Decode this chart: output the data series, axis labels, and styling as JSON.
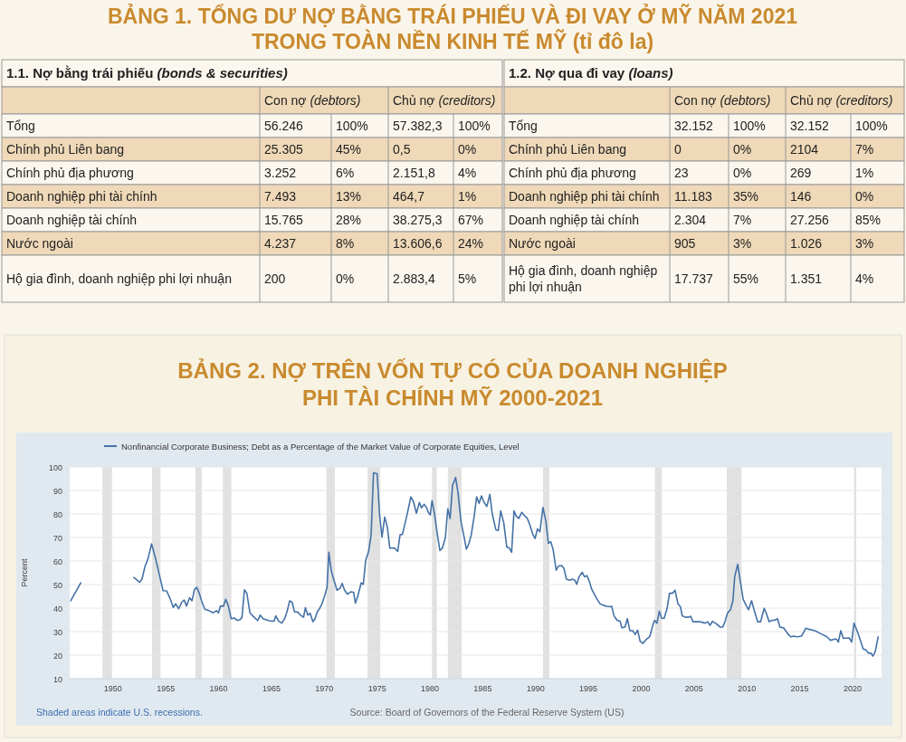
{
  "chart_data": [
    {
      "type": "other",
      "title": "BẢNG 1. TỔNG DƯ NỢ BẰNG TRÁI PHIẾU VÀ ĐI VAY Ở MỸ NĂM 2021\nTRONG TOÀN NỀN KINH TẾ MỸ (tỉ đô la)",
      "subtitle": "1.1. Nợ bằng trái phiếu (bonds & securities)",
      "categories": [
        "Con nợ (debtors)",
        "Chủ nợ (creditors)"
      ],
      "y_categories": [
        "Tổng",
        "Chính phủ Liên bang",
        "Chính phủ địa phương",
        "Doanh nghiệp phi tài chính",
        "Doanh nghiệp tài chính",
        "Nước ngoài",
        "Hộ gia đình, doanh nghiệp phi lợi nhuận"
      ],
      "cell_labels": [
        [
          "56.246",
          "100%",
          "57.382,3",
          "100%"
        ],
        [
          "25.305",
          "45%",
          "0,5",
          "0%"
        ],
        [
          "3.252",
          "6%",
          "2.151,8",
          "4%"
        ],
        [
          "7.493",
          "13%",
          "464,7",
          "1%"
        ],
        [
          "15.765",
          "28%",
          "38.275,3",
          "67%"
        ],
        [
          "4.237",
          "8%",
          "13.606,6",
          "24%"
        ],
        [
          "200",
          "0%",
          "2.883,4",
          "5%"
        ]
      ]
    },
    {
      "type": "other",
      "subtitle": "1.2. Nợ qua đi vay (loans)",
      "categories": [
        "Con nợ (debtors)",
        "Chủ nợ (creditors)"
      ],
      "y_categories": [
        "Tổng",
        "Chính phủ Liên bang",
        "Chính phủ địa phương",
        "Doanh nghiệp phi tài chính",
        "Doanh nghiệp tài chính",
        "Nước ngoài",
        "Hộ gia đình, doanh nghiệp phi lợi nhuận"
      ],
      "cell_labels": [
        [
          "32.152",
          "100%",
          "32.152",
          "100%"
        ],
        [
          "0",
          "0%",
          "2104",
          "7%"
        ],
        [
          "23",
          "0%",
          "269",
          "1%"
        ],
        [
          "11.183",
          "35%",
          "146",
          "0%"
        ],
        [
          "2.304",
          "7%",
          "27.256",
          "85%"
        ],
        [
          "905",
          "3%",
          "1.026",
          "3%"
        ],
        [
          "17.737",
          "55%",
          "1.351",
          "4%"
        ]
      ]
    },
    {
      "type": "line",
      "title": "BẢNG 2. NỢ TRÊN VỐN TỰ CÓ CỦA DOANH NGHIỆP\nPHI TÀI CHÍNH MỸ 2000-2021",
      "ylabel": "Percent",
      "legend": "top left",
      "grid": "y",
      "xlim": [
        1945.9,
        2022.75
      ],
      "xticks": [
        1950,
        1955,
        1960,
        1965,
        1970,
        1975,
        1980,
        1985,
        1990,
        1995,
        2000,
        2005,
        2010,
        2015,
        2020
      ],
      "ylim": [
        10,
        100
      ],
      "yticks": [
        10,
        20,
        30,
        40,
        50,
        60,
        70,
        80,
        90,
        100
      ],
      "annotations": [
        "Shaded areas indicate U.S. recessions.",
        "Source: Board of Governors of the Federal Reserve System (US)"
      ],
      "bands": [
        {
          "axis": "x",
          "from": 1949.0,
          "to": 1949.9,
          "color": "#e1e1e1"
        },
        {
          "axis": "x",
          "from": 1953.7,
          "to": 1954.5,
          "color": "#e1e1e1"
        },
        {
          "axis": "x",
          "from": 1957.8,
          "to": 1958.4,
          "color": "#e1e1e1"
        },
        {
          "axis": "x",
          "from": 1960.4,
          "to": 1961.2,
          "color": "#e1e1e1"
        },
        {
          "axis": "x",
          "from": 1970.2,
          "to": 1971.0,
          "color": "#e1e1e1"
        },
        {
          "axis": "x",
          "from": 1974.1,
          "to": 1975.3,
          "color": "#e1e1e1"
        },
        {
          "axis": "x",
          "from": 1980.2,
          "to": 1980.65,
          "color": "#e1e1e1"
        },
        {
          "axis": "x",
          "from": 1981.7,
          "to": 1983.0,
          "color": "#e1e1e1"
        },
        {
          "axis": "x",
          "from": 1990.7,
          "to": 1991.3,
          "color": "#e1e1e1"
        },
        {
          "axis": "x",
          "from": 2001.3,
          "to": 2001.95,
          "color": "#e1e1e1"
        },
        {
          "axis": "x",
          "from": 2008.1,
          "to": 2009.5,
          "color": "#e1e1e1"
        },
        {
          "axis": "x",
          "from": 2020.15,
          "to": 2020.35,
          "color": "#e1e1e1"
        }
      ],
      "x": [
        1946.0,
        1946.95,
        1949.5,
        1951.97,
        1952.51,
        1952.74,
        1953.03,
        1953.31,
        1953.65,
        1954.0,
        1954.4,
        1954.74,
        1955.08,
        1955.37,
        1955.71,
        1955.94,
        1956.22,
        1956.51,
        1956.74,
        1956.96,
        1957.25,
        1957.48,
        1957.71,
        1957.93,
        1958.16,
        1958.39,
        1958.68,
        1959.08,
        1959.5,
        1959.79,
        1959.99,
        1960.16,
        1960.45,
        1960.67,
        1960.9,
        1961.19,
        1961.47,
        1961.76,
        1962.04,
        1962.21,
        1962.44,
        1962.67,
        1962.96,
        1963.36,
        1963.7,
        1963.93,
        1964.21,
        1964.78,
        1965.24,
        1965.41,
        1965.7,
        1965.98,
        1966.27,
        1966.5,
        1966.72,
        1966.95,
        1967.18,
        1967.47,
        1967.75,
        1968.04,
        1968.21,
        1968.44,
        1968.66,
        1968.92,
        1969.12,
        1969.35,
        1969.49,
        1969.78,
        1970.06,
        1970.26,
        1970.43,
        1970.66,
        1970.91,
        1971.2,
        1971.49,
        1971.69,
        1971.92,
        1972.2,
        1972.49,
        1972.77,
        1972.95,
        1973.2,
        1973.49,
        1973.69,
        1973.92,
        1974.2,
        1974.43,
        1974.66,
        1975.0,
        1975.23,
        1975.46,
        1975.72,
        1975.97,
        1976.2,
        1976.63,
        1976.95,
        1977.17,
        1977.4,
        1977.8,
        1978.2,
        1978.43,
        1978.72,
        1979.0,
        1979.2,
        1979.46,
        1979.69,
        1979.85,
        1980.03,
        1980.2,
        1980.43,
        1980.71,
        1980.94,
        1981.17,
        1981.46,
        1981.69,
        1981.91,
        1982.14,
        1982.43,
        1982.66,
        1982.94,
        1983.22,
        1983.45,
        1983.68,
        1983.91,
        1984.2,
        1984.42,
        1984.65,
        1984.88,
        1985.1,
        1985.39,
        1985.67,
        1985.9,
        1986.24,
        1986.47,
        1986.7,
        1986.99,
        1987.27,
        1987.5,
        1987.73,
        1987.96,
        1988.18,
        1988.41,
        1988.7,
        1988.93,
        1989.22,
        1989.44,
        1989.73,
        1989.95,
        1990.18,
        1990.41,
        1990.7,
        1990.98,
        1991.21,
        1991.44,
        1991.67,
        1991.95,
        1992.18,
        1992.47,
        1992.69,
        1992.92,
        1993.21,
        1993.49,
        1993.72,
        1993.89,
        1994.12,
        1994.41,
        1994.63,
        1994.86,
        1995.09,
        1995.32,
        1995.83,
        1996.11,
        1996.4,
        1996.74,
        1997.03,
        1997.2,
        1997.43,
        1997.71,
        1998.0,
        1998.17,
        1998.46,
        1998.69,
        1998.92,
        1999.2,
        1999.43,
        1999.66,
        1999.89,
        2000.17,
        2000.46,
        2000.8,
        2001.03,
        2001.26,
        2001.49,
        2001.71,
        2001.94,
        2002.17,
        2002.45,
        2002.68,
        2002.97,
        2003.2,
        2003.48,
        2003.71,
        2003.88,
        2004.17,
        2004.45,
        2004.68,
        2004.91,
        2005.2,
        2005.54,
        2005.82,
        2006.05,
        2006.28,
        2006.51,
        2006.74,
        2007.14,
        2007.48,
        2007.71,
        2007.93,
        2008.16,
        2008.45,
        2008.68,
        2008.85,
        2009.13,
        2009.36,
        2009.65,
        2009.93,
        2010.16,
        2010.45,
        2010.68,
        2011.02,
        2011.3,
        2011.64,
        2011.87,
        2012.1,
        2012.39,
        2012.61,
        2012.9,
        2013.13,
        2013.47,
        2013.87,
        2014.15,
        2014.44,
        2014.73,
        2015.18,
        2015.58,
        2015.87,
        2016.44,
        2017.01,
        2017.58,
        2017.92,
        2018.32,
        2018.49,
        2018.66,
        2018.89,
        2019.12,
        2019.46,
        2019.69,
        2019.92,
        2020.14,
        2020.43,
        2020.72,
        2021.0,
        2021.29,
        2021.52,
        2021.75,
        2021.92,
        2022.15,
        2022.43
      ],
      "series": [
        {
          "name": "Nonfinancial Corporate Business; Debt as a Percentage of the Market Value of Corporate Equities, Level",
          "color": "#4572a7",
          "values": [
            43.1,
            50.7,
            null,
            53.0,
            51.0,
            52.3,
            57.7,
            60.9,
            67.3,
            61.6,
            53.9,
            47.4,
            47.3,
            44.4,
            40.3,
            41.8,
            39.7,
            42.5,
            43.4,
            40.9,
            44.4,
            43.1,
            47.9,
            48.8,
            46.3,
            43.1,
            39.5,
            38.9,
            38.0,
            38.9,
            38.0,
            40.8,
            40.8,
            43.7,
            41.2,
            35.5,
            35.8,
            34.8,
            35.1,
            36.1,
            47.8,
            46.3,
            38.0,
            36.1,
            34.7,
            37.0,
            35.5,
            34.6,
            34.4,
            36.7,
            34.4,
            33.6,
            35.7,
            38.9,
            43.1,
            42.5,
            38.4,
            38.3,
            37.0,
            36.1,
            40.2,
            37.0,
            37.8,
            34.2,
            35.5,
            38.6,
            39.3,
            41.8,
            45.6,
            48.8,
            63.7,
            55.8,
            52.0,
            47.6,
            48.4,
            50.5,
            47.6,
            45.9,
            46.9,
            46.7,
            42.1,
            45.6,
            50.7,
            50.1,
            60.3,
            64.1,
            70.9,
            97.5,
            97.1,
            80.0,
            70.1,
            78.7,
            74.3,
            65.5,
            65.6,
            64.1,
            71.1,
            71.4,
            79.0,
            87.3,
            85.4,
            80.3,
            84.9,
            82.6,
            84.1,
            82.6,
            80.7,
            79.6,
            85.7,
            80.0,
            71.1,
            64.5,
            65.4,
            69.8,
            82.2,
            78.1,
            92.1,
            95.5,
            88.9,
            76.8,
            70.5,
            65.0,
            67.3,
            71.1,
            79.4,
            87.3,
            84.5,
            87.7,
            85.1,
            83.2,
            88.3,
            80.0,
            73.3,
            73.0,
            81.3,
            76.2,
            66.0,
            65.6,
            63.7,
            81.3,
            79.0,
            78.1,
            80.7,
            79.4,
            78.1,
            75.6,
            71.4,
            69.6,
            73.7,
            72.4,
            82.8,
            76.8,
            67.5,
            68.2,
            64.7,
            56.1,
            57.9,
            58.1,
            56.8,
            52.3,
            51.8,
            52.3,
            51.8,
            50.1,
            53.3,
            55.2,
            53.3,
            53.8,
            51.4,
            47.9,
            43.7,
            41.8,
            41.2,
            40.8,
            40.6,
            40.8,
            36.7,
            34.8,
            34.4,
            31.6,
            31.9,
            35.5,
            30.4,
            30.4,
            28.8,
            30.6,
            25.9,
            25.0,
            26.6,
            27.8,
            31.6,
            34.8,
            33.6,
            38.6,
            35.7,
            35.7,
            39.9,
            46.3,
            46.3,
            47.6,
            41.8,
            40.6,
            36.7,
            36.1,
            36.1,
            36.5,
            34.2,
            34.2,
            34.2,
            33.9,
            33.6,
            34.2,
            32.7,
            34.4,
            33.2,
            31.9,
            31.9,
            34.2,
            37.8,
            39.3,
            43.1,
            53.3,
            58.6,
            52.0,
            43.7,
            41.2,
            39.3,
            43.1,
            39.3,
            34.2,
            34.2,
            39.9,
            37.4,
            34.2,
            34.8,
            34.8,
            35.5,
            31.9,
            31.6,
            29.1,
            27.8,
            28.1,
            27.8,
            28.1,
            31.4,
            31.0,
            30.4,
            29.1,
            27.8,
            26.3,
            26.8,
            26.8,
            25.5,
            30.4,
            27.2,
            27.2,
            27.3,
            25.5,
            33.6,
            30.4,
            26.6,
            22.7,
            22.1,
            20.8,
            20.8,
            19.6,
            21.5,
            27.8
          ]
        }
      ]
    }
  ]
}
